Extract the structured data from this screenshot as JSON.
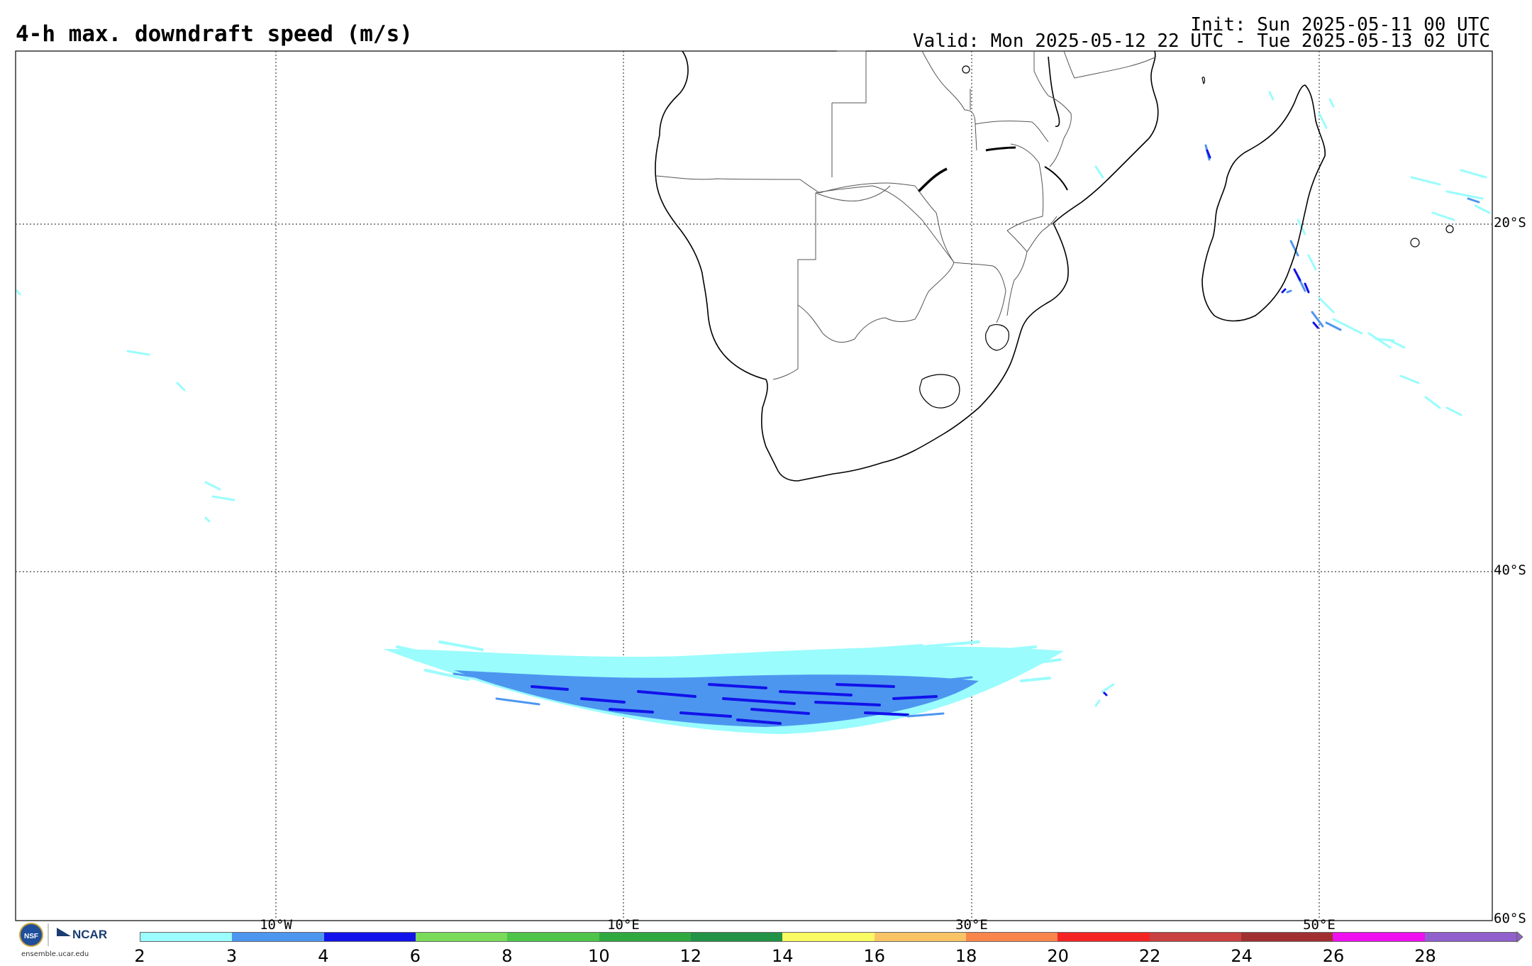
{
  "header": {
    "title": "4-h max. downdraft speed (m/s)",
    "init": "Init: Sun 2025-05-11 00 UTC",
    "valid": "Valid: Mon 2025-05-12 22 UTC - Tue 2025-05-13 02 UTC"
  },
  "map": {
    "lat_labels": [
      "20°S",
      "40°S",
      "60°S"
    ],
    "lon_labels": [
      "10°W",
      "10°E",
      "30°E",
      "50°E"
    ],
    "colors": {
      "land_border": "#000000",
      "country_border": "#555555",
      "gridline": "#444444",
      "shade_2_3": "#9afcfc",
      "shade_3_4": "#4d96f0",
      "shade_4_6": "#1010e8"
    }
  },
  "colorbar": {
    "ticks": [
      "2",
      "3",
      "4",
      "6",
      "8",
      "10",
      "12",
      "14",
      "16",
      "18",
      "20",
      "22",
      "24",
      "26",
      "28"
    ],
    "colors": [
      "#9afcfc",
      "#4d96f0",
      "#1212ea",
      "#7ada5a",
      "#4ec44a",
      "#30a840",
      "#229246",
      "#fafa62",
      "#fac466",
      "#f8864a",
      "#f42424",
      "#c84040",
      "#a03030",
      "#ee10ee",
      "#9060cc"
    ]
  },
  "logo": {
    "org": "NCAR",
    "url": "ensemble.ucar.edu"
  }
}
